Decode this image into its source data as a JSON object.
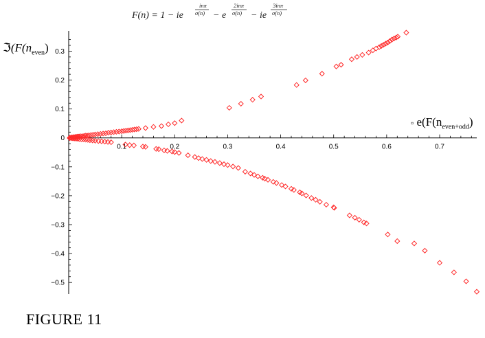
{
  "title_formula": {
    "lhs": "F(n) = 1 − ie",
    "e1_exp_num": "inπ",
    "e1_exp_den": "σ(n)",
    "minus": "− e",
    "e2_exp_num": "2inπ",
    "e2_exp_den": "σ(n)",
    "minus2": "− ie",
    "e3_exp_num": "3inπ",
    "e3_exp_den": "σ(n)"
  },
  "ylabel": {
    "symbol": "ℑ",
    "main": "(F(n",
    "sub": "even",
    "close": ")"
  },
  "xlabel": {
    "symbol": "▫",
    "main": "e(F(n",
    "sub": "even+odd",
    "close": ")"
  },
  "caption": "FIGURE 11",
  "colors": {
    "marker": "#ff2a2a",
    "axis": "#000000"
  },
  "chart_data": {
    "type": "scatter",
    "marker": "diamond",
    "xlim": [
      0,
      0.77
    ],
    "ylim": [
      -0.54,
      0.37
    ],
    "xticks": [
      0.1,
      0.2,
      0.3,
      0.4,
      0.5,
      0.6,
      0.7
    ],
    "xtick_labels": [
      "0.1",
      "0.2",
      "0.3",
      "0.4",
      "0.5",
      "0.6",
      "0.7"
    ],
    "yticks": [
      0.3,
      0.2,
      0.1,
      0,
      -0.1,
      -0.2,
      -0.3,
      -0.4,
      -0.5
    ],
    "ytick_labels": [
      "0.3",
      "0.2",
      "0.1",
      "0",
      "−0.1",
      "−0.2",
      "−0.3",
      "−0.4",
      "−0.5"
    ],
    "series": [
      {
        "points": [
          [
            0.002,
            0.001
          ],
          [
            0.004,
            0.001
          ],
          [
            0.006,
            0.002
          ],
          [
            0.008,
            0.002
          ],
          [
            0.01,
            0.003
          ],
          [
            0.012,
            0.003
          ],
          [
            0.014,
            0.004
          ],
          [
            0.016,
            0.004
          ],
          [
            0.018,
            0.005
          ],
          [
            0.02,
            0.005
          ],
          [
            0.023,
            0.006
          ],
          [
            0.026,
            0.006
          ],
          [
            0.029,
            0.007
          ],
          [
            0.032,
            0.008
          ],
          [
            0.035,
            0.008
          ],
          [
            0.038,
            0.009
          ],
          [
            0.042,
            0.01
          ],
          [
            0.046,
            0.011
          ],
          [
            0.05,
            0.012
          ],
          [
            0.055,
            0.013
          ],
          [
            0.06,
            0.014
          ],
          [
            0.065,
            0.015
          ],
          [
            0.07,
            0.016
          ],
          [
            0.075,
            0.018
          ],
          [
            0.08,
            0.019
          ],
          [
            0.085,
            0.02
          ],
          [
            0.09,
            0.021
          ],
          [
            0.095,
            0.022
          ],
          [
            0.1,
            0.023
          ],
          [
            0.104,
            0.024
          ],
          [
            0.108,
            0.025
          ],
          [
            0.112,
            0.026
          ],
          [
            0.116,
            0.027
          ],
          [
            0.12,
            0.028
          ],
          [
            0.124,
            0.029
          ],
          [
            0.128,
            0.03
          ],
          [
            0.132,
            0.031
          ],
          [
            0.145,
            0.034
          ],
          [
            0.16,
            0.038
          ],
          [
            0.175,
            0.041
          ],
          [
            0.188,
            0.047
          ],
          [
            0.2,
            0.051
          ],
          [
            0.213,
            0.06
          ],
          [
            0.303,
            0.104
          ],
          [
            0.325,
            0.118
          ],
          [
            0.347,
            0.132
          ],
          [
            0.363,
            0.143
          ],
          [
            0.43,
            0.183
          ],
          [
            0.447,
            0.199
          ],
          [
            0.478,
            0.222
          ],
          [
            0.505,
            0.247
          ],
          [
            0.514,
            0.253
          ],
          [
            0.534,
            0.272
          ],
          [
            0.544,
            0.28
          ],
          [
            0.554,
            0.287
          ],
          [
            0.566,
            0.295
          ],
          [
            0.574,
            0.303
          ],
          [
            0.58,
            0.309
          ],
          [
            0.586,
            0.314
          ],
          [
            0.59,
            0.318
          ],
          [
            0.594,
            0.322
          ],
          [
            0.598,
            0.326
          ],
          [
            0.602,
            0.33
          ],
          [
            0.606,
            0.335
          ],
          [
            0.61,
            0.34
          ],
          [
            0.614,
            0.344
          ],
          [
            0.618,
            0.347
          ],
          [
            0.621,
            0.35
          ],
          [
            0.637,
            0.364
          ]
        ]
      },
      {
        "points": [
          [
            0.002,
            -0.001
          ],
          [
            0.005,
            -0.001
          ],
          [
            0.008,
            -0.002
          ],
          [
            0.011,
            -0.002
          ],
          [
            0.014,
            -0.003
          ],
          [
            0.017,
            -0.003
          ],
          [
            0.02,
            -0.004
          ],
          [
            0.024,
            -0.005
          ],
          [
            0.028,
            -0.005
          ],
          [
            0.032,
            -0.006
          ],
          [
            0.036,
            -0.007
          ],
          [
            0.04,
            -0.008
          ],
          [
            0.045,
            -0.009
          ],
          [
            0.05,
            -0.01
          ],
          [
            0.056,
            -0.011
          ],
          [
            0.062,
            -0.012
          ],
          [
            0.068,
            -0.013
          ],
          [
            0.074,
            -0.014
          ],
          [
            0.08,
            -0.015
          ],
          [
            0.107,
            -0.023
          ],
          [
            0.115,
            -0.025
          ],
          [
            0.123,
            -0.026
          ],
          [
            0.14,
            -0.03
          ],
          [
            0.145,
            -0.031
          ],
          [
            0.165,
            -0.038
          ],
          [
            0.17,
            -0.039
          ],
          [
            0.18,
            -0.043
          ],
          [
            0.186,
            -0.045
          ],
          [
            0.195,
            -0.047
          ],
          [
            0.2,
            -0.049
          ],
          [
            0.208,
            -0.052
          ],
          [
            0.225,
            -0.06
          ],
          [
            0.238,
            -0.066
          ],
          [
            0.245,
            -0.07
          ],
          [
            0.252,
            -0.073
          ],
          [
            0.26,
            -0.076
          ],
          [
            0.268,
            -0.08
          ],
          [
            0.276,
            -0.083
          ],
          [
            0.285,
            -0.087
          ],
          [
            0.293,
            -0.091
          ],
          [
            0.3,
            -0.094
          ],
          [
            0.31,
            -0.099
          ],
          [
            0.32,
            -0.104
          ],
          [
            0.333,
            -0.117
          ],
          [
            0.343,
            -0.123
          ],
          [
            0.35,
            -0.128
          ],
          [
            0.357,
            -0.133
          ],
          [
            0.366,
            -0.138
          ],
          [
            0.37,
            -0.141
          ],
          [
            0.376,
            -0.145
          ],
          [
            0.386,
            -0.152
          ],
          [
            0.392,
            -0.156
          ],
          [
            0.402,
            -0.163
          ],
          [
            0.409,
            -0.168
          ],
          [
            0.42,
            -0.176
          ],
          [
            0.425,
            -0.18
          ],
          [
            0.436,
            -0.188
          ],
          [
            0.44,
            -0.192
          ],
          [
            0.448,
            -0.199
          ],
          [
            0.458,
            -0.208
          ],
          [
            0.466,
            -0.214
          ],
          [
            0.474,
            -0.221
          ],
          [
            0.486,
            -0.231
          ],
          [
            0.5,
            -0.24
          ],
          [
            0.501,
            -0.242
          ],
          [
            0.53,
            -0.268
          ],
          [
            0.54,
            -0.276
          ],
          [
            0.548,
            -0.283
          ],
          [
            0.557,
            -0.292
          ],
          [
            0.562,
            -0.296
          ],
          [
            0.602,
            -0.334
          ],
          [
            0.62,
            -0.357
          ],
          [
            0.652,
            -0.365
          ],
          [
            0.672,
            -0.39
          ],
          [
            0.7,
            -0.432
          ],
          [
            0.727,
            -0.465
          ],
          [
            0.75,
            -0.496
          ],
          [
            0.77,
            -0.532
          ]
        ]
      }
    ]
  }
}
